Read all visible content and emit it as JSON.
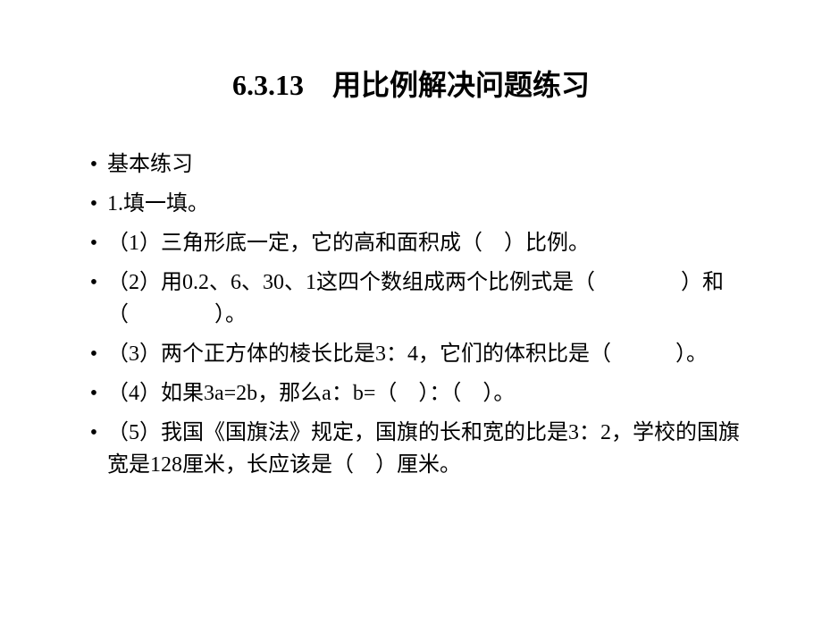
{
  "title": "6.3.13　用比例解决问题练习",
  "title_fontsize": 32,
  "title_color": "#000000",
  "content_fontsize": 24,
  "content_color": "#000000",
  "bullet_color": "#000000",
  "bullet_char": "•",
  "background_color": "#ffffff",
  "items": [
    "基本练习",
    "1.填一填。",
    "（1）三角形底一定，它的高和面积成（　）比例。",
    "（2）用0.2、6、30、1这四个数组成两个比例式是（　　　　）和（　　　　）。",
    "（3）两个正方体的棱长比是3：4，它们的体积比是（　　　）。",
    "（4）如果3a=2b，那么a：b=（　）：（　）。",
    "（5）我国《国旗法》规定，国旗的长和宽的比是3：2，学校的国旗宽是128厘米，长应该是（　）厘米。"
  ]
}
